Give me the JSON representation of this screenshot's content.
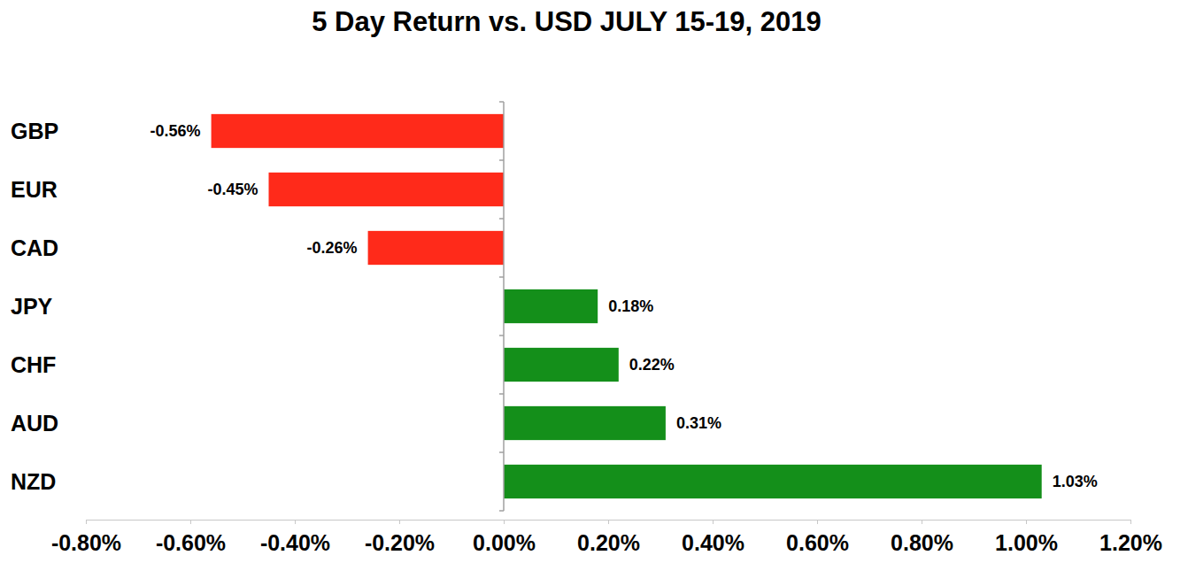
{
  "chart_data": {
    "type": "bar",
    "orientation": "horizontal",
    "title": "5 Day Return vs. USD JULY 15-19, 2019",
    "categories": [
      "GBP",
      "EUR",
      "CAD",
      "JPY",
      "CHF",
      "AUD",
      "NZD"
    ],
    "values": [
      -0.56,
      -0.45,
      -0.26,
      0.18,
      0.22,
      0.31,
      1.03
    ],
    "value_labels": [
      "-0.56%",
      "-0.45%",
      "-0.26%",
      "0.18%",
      "0.22%",
      "0.31%",
      "1.03%"
    ],
    "colors": [
      "#ff2a1a",
      "#ff2a1a",
      "#ff2a1a",
      "#148f1a",
      "#148f1a",
      "#148f1a",
      "#148f1a"
    ],
    "data_labels": true,
    "grid": false,
    "xlim": [
      -0.8,
      1.2
    ],
    "xticks": [
      {
        "value": -0.8,
        "label": "-0.80%"
      },
      {
        "value": -0.6,
        "label": "-0.60%"
      },
      {
        "value": -0.4,
        "label": "-0.40%"
      },
      {
        "value": -0.2,
        "label": "-0.20%"
      },
      {
        "value": 0,
        "label": "0.00%"
      },
      {
        "value": 0.2,
        "label": "0.20%"
      },
      {
        "value": 0.4,
        "label": "0.40%"
      },
      {
        "value": 0.6,
        "label": "0.60%"
      },
      {
        "value": 0.8,
        "label": "0.80%"
      },
      {
        "value": 1.0,
        "label": "1.00%"
      },
      {
        "value": 1.2,
        "label": "1.20%"
      }
    ]
  }
}
